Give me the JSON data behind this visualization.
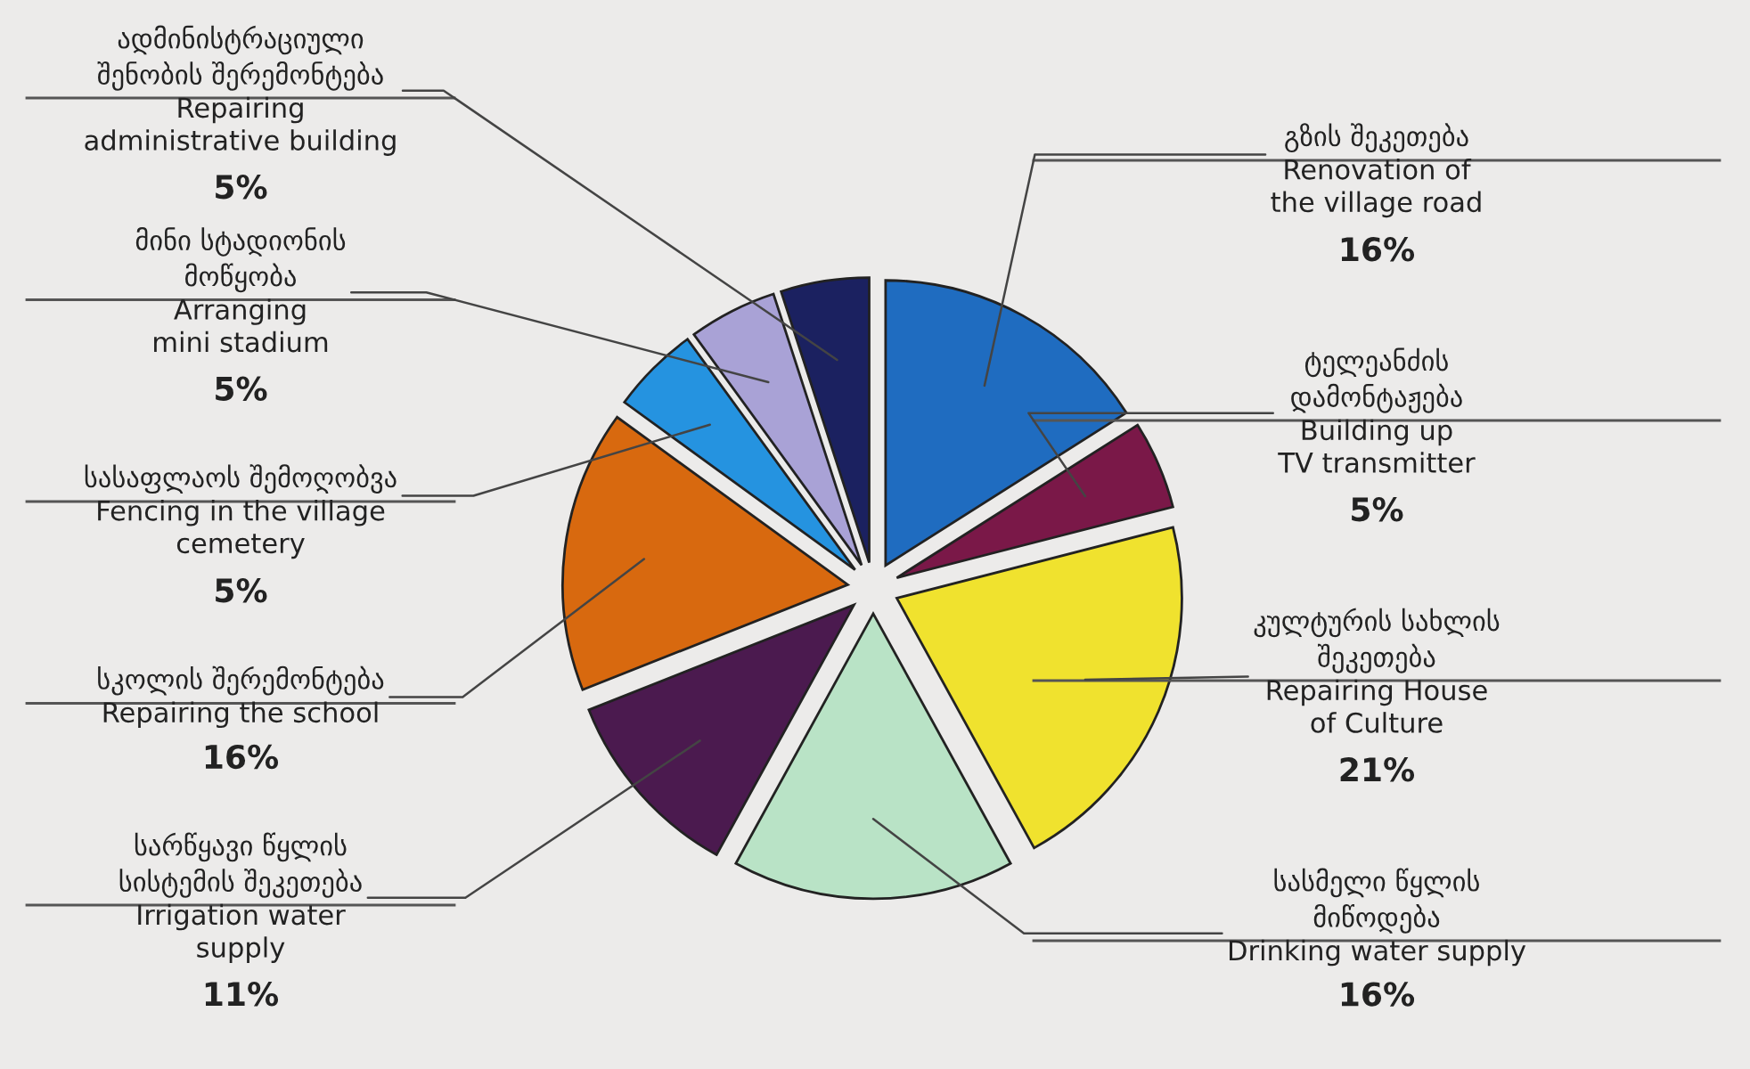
{
  "chart_data": {
    "type": "pie",
    "categories": [
      "გზის შეკეთება\n\nRenovation of\nthe village road",
      "ტელეანძის\nდამონტაჟება\n\nBuilding up\nTV transmitter",
      "კულტურის სახლის\nშეკეთება\n\nRepairing House\nof Culture",
      "სასმელი წყლის\nმიწოდება\n\nDrinking water supply",
      "სარწყავი წყლის\nსისტემის შეკეთება\n\nIrrigation water\nsupply",
      "სკოლის შერემონტება\n\nRepairing the school",
      "სასაფლაოს შემოღობვა\n\nFencing in the village\ncemetery",
      "მინი სტადიონის\nმოწყობა\n\nArranging\nmini stadium",
      "ადმინისტრაციული\nშენობის შერემონტება\n\nRepairing\nadministrative building"
    ],
    "values": [
      16,
      5,
      21,
      16,
      11,
      16,
      5,
      5,
      5
    ],
    "value_labels": [
      "16%",
      "5%",
      "21%",
      "16%",
      "11%",
      "16%",
      "5%",
      "5%",
      "5%"
    ],
    "colors": [
      "#1f6cc0",
      "#7a1848",
      "#f0e22e",
      "#b9e3c6",
      "#4b1a4f",
      "#d8690f",
      "#2593e0",
      "#a9a2d6",
      "#1b2160"
    ]
  }
}
